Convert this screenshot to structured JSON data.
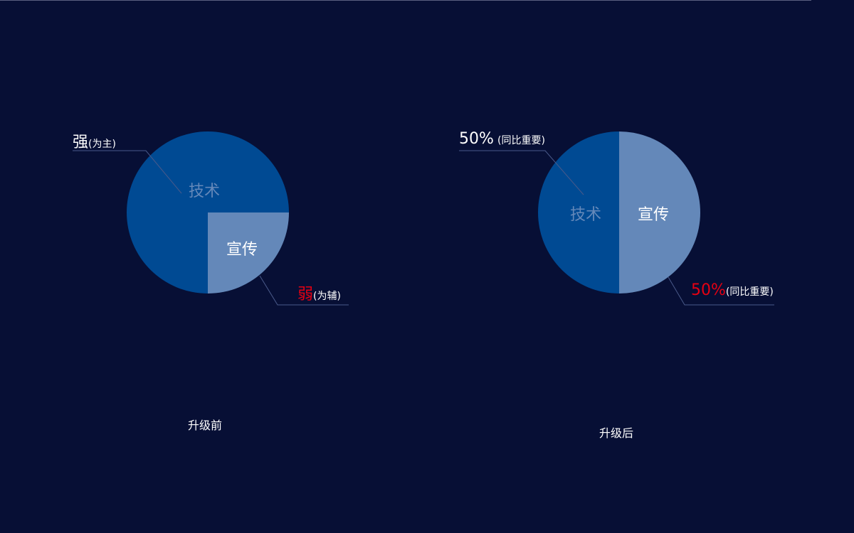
{
  "colors": {
    "background": "#070f35",
    "tech": "#004a93",
    "promo": "#6488b9",
    "highlight": "#e60012",
    "leader": "#4a5a8a"
  },
  "chart_data": [
    {
      "type": "pie",
      "title": "升级前",
      "slices": [
        {
          "label": "技术",
          "value": 75,
          "color": "#004a93"
        },
        {
          "label": "宣传",
          "value": 25,
          "color": "#6488b9"
        }
      ],
      "annotations": [
        {
          "main": "强",
          "sub": "(为主)",
          "slice": "技术"
        },
        {
          "main": "弱",
          "sub": "(为辅)",
          "slice": "宣传"
        }
      ]
    },
    {
      "type": "pie",
      "title": "升级后",
      "slices": [
        {
          "label": "技术",
          "value": 50,
          "color": "#004a93"
        },
        {
          "label": "宣传",
          "value": 50,
          "color": "#6488b9"
        }
      ],
      "annotations": [
        {
          "main": "50%",
          "sub": "(同比重要)",
          "slice": "技术"
        },
        {
          "main": "50%",
          "sub": "(同比重要)",
          "slice": "宣传"
        }
      ]
    }
  ]
}
